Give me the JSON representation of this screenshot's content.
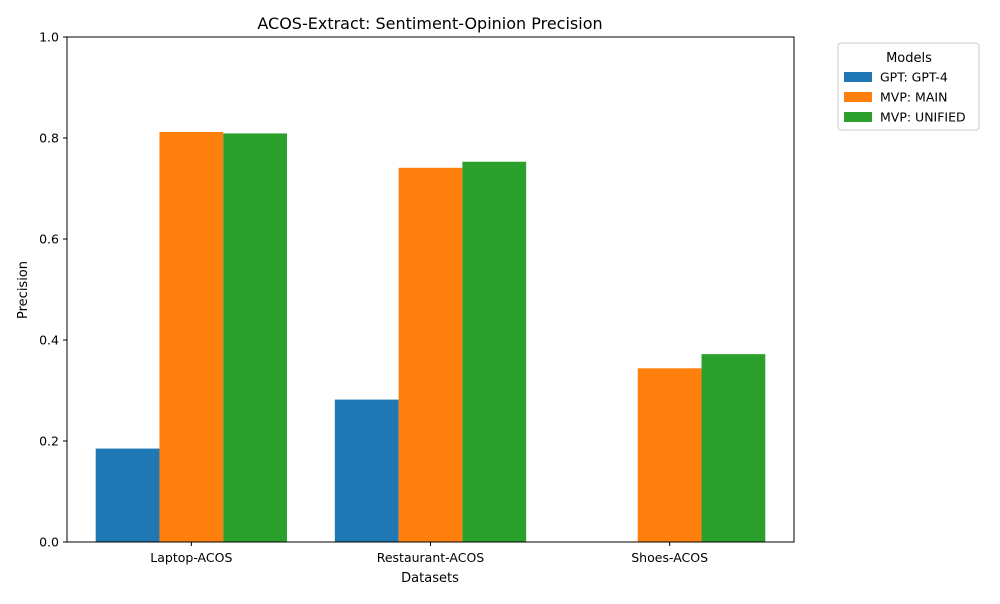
{
  "chart_data": {
    "type": "bar",
    "title": "ACOS-Extract: Sentiment-Opinion Precision",
    "xlabel": "Datasets",
    "ylabel": "Precision",
    "ylim": [
      0,
      1
    ],
    "yticks": [
      0.0,
      0.2,
      0.4,
      0.6,
      0.8,
      1.0
    ],
    "ytick_labels": [
      "0.0",
      "0.2",
      "0.4",
      "0.6",
      "0.8",
      "1.0"
    ],
    "categories": [
      "Laptop-ACOS",
      "Restaurant-ACOS",
      "Shoes-ACOS"
    ],
    "series": [
      {
        "name": "GPT: GPT-4",
        "color": "#1f77b4",
        "values": [
          0.185,
          0.282,
          0.0
        ]
      },
      {
        "name": "MVP: MAIN",
        "color": "#ff7f0e",
        "values": [
          0.812,
          0.741,
          0.344
        ]
      },
      {
        "name": "MVP: UNIFIED",
        "color": "#2ca02c",
        "values": [
          0.809,
          0.753,
          0.372
        ]
      }
    ],
    "legend": {
      "title": "Models",
      "placement": "outside-top-right"
    },
    "grid": false
  }
}
